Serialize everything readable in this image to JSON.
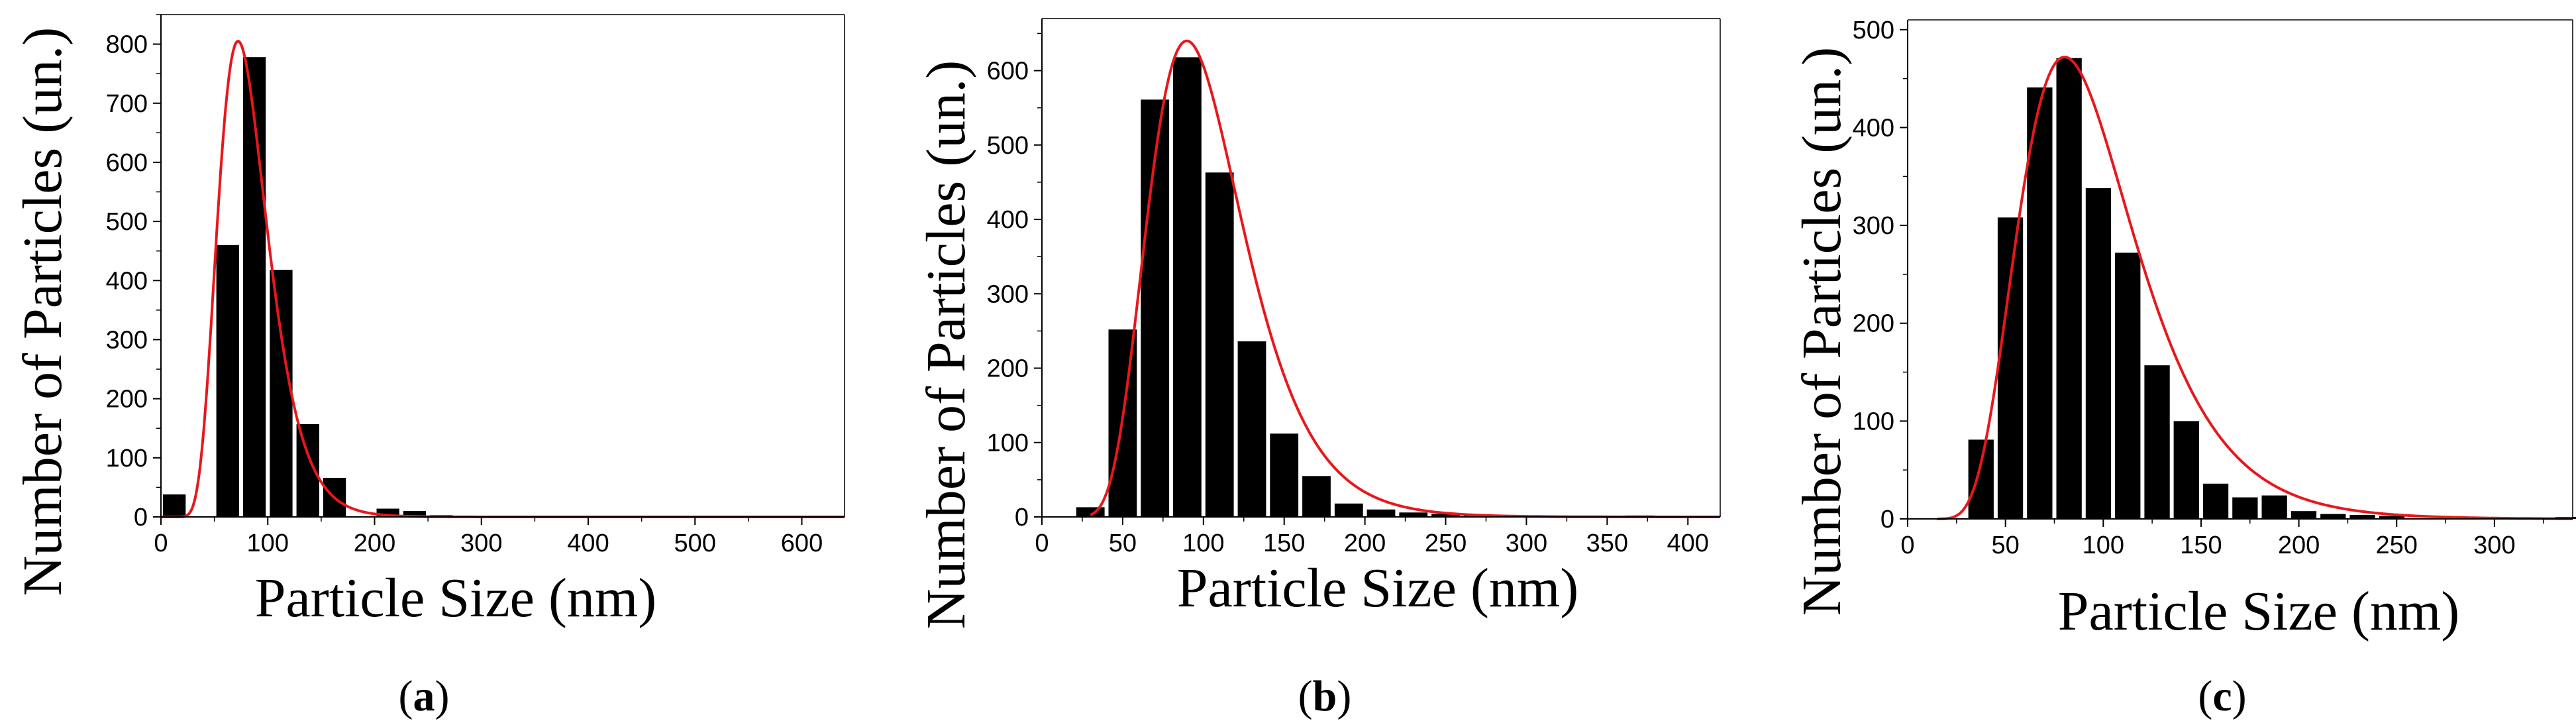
{
  "chart_data": [
    {
      "type": "bar",
      "caption": "a",
      "xlabel": "Particle Size (nm)",
      "ylabel": "Number of Particles (un.)",
      "xlim": [
        0,
        640
      ],
      "ylim": [
        0,
        850
      ],
      "xticks": [
        0,
        100,
        200,
        300,
        400,
        500,
        600
      ],
      "yticks": [
        0,
        100,
        200,
        300,
        400,
        500,
        600,
        700,
        800
      ],
      "bin_width": 25,
      "bins": [
        {
          "x": 12.5,
          "value": 38
        },
        {
          "x": 37.5,
          "value": 0
        },
        {
          "x": 62.5,
          "value": 460
        },
        {
          "x": 87.5,
          "value": 778
        },
        {
          "x": 112.5,
          "value": 418
        },
        {
          "x": 137.5,
          "value": 157
        },
        {
          "x": 162.5,
          "value": 66
        },
        {
          "x": 187.5,
          "value": 0
        },
        {
          "x": 212.5,
          "value": 14
        },
        {
          "x": 237.5,
          "value": 10
        },
        {
          "x": 262.5,
          "value": 3
        },
        {
          "x": 287.5,
          "value": 2
        }
      ],
      "fit": {
        "type": "lognormal",
        "median": 80,
        "sigma": 0.32,
        "peak": 805,
        "xmin": 0,
        "xmax": 640,
        "color": "#e8171c"
      }
    },
    {
      "type": "bar",
      "caption": "b",
      "xlabel": "Particle Size (nm)",
      "ylabel": "Number of Particles (un.)",
      "xlim": [
        0,
        420
      ],
      "ylim": [
        0,
        670
      ],
      "xticks": [
        0,
        50,
        100,
        150,
        200,
        250,
        300,
        350,
        400
      ],
      "yticks": [
        0,
        100,
        200,
        300,
        400,
        500,
        600
      ],
      "bin_width": 20,
      "bins": [
        {
          "x": 30,
          "value": 13
        },
        {
          "x": 50,
          "value": 252
        },
        {
          "x": 70,
          "value": 561
        },
        {
          "x": 90,
          "value": 618
        },
        {
          "x": 110,
          "value": 463
        },
        {
          "x": 130,
          "value": 236
        },
        {
          "x": 150,
          "value": 112
        },
        {
          "x": 170,
          "value": 55
        },
        {
          "x": 190,
          "value": 18
        },
        {
          "x": 210,
          "value": 10
        },
        {
          "x": 230,
          "value": 6
        },
        {
          "x": 250,
          "value": 4
        },
        {
          "x": 270,
          "value": 2
        },
        {
          "x": 370,
          "value": 2
        }
      ],
      "fit": {
        "type": "lognormal",
        "median": 100,
        "sigma": 0.33,
        "peak": 640,
        "xmin": 30,
        "xmax": 420,
        "color": "#e8171c"
      }
    },
    {
      "type": "bar",
      "caption": "c",
      "xlabel": "Particle Size (nm)",
      "ylabel": "Number of Particles (un.)",
      "xlim": [
        0,
        340
      ],
      "ylim": [
        0,
        510
      ],
      "xticks": [
        0,
        50,
        100,
        150,
        200,
        250,
        300
      ],
      "yticks": [
        0,
        100,
        200,
        300,
        400,
        500
      ],
      "bin_width": 15,
      "bins": [
        {
          "x": 37.5,
          "value": 81
        },
        {
          "x": 52.5,
          "value": 308
        },
        {
          "x": 67.5,
          "value": 441
        },
        {
          "x": 82.5,
          "value": 471
        },
        {
          "x": 97.5,
          "value": 338
        },
        {
          "x": 112.5,
          "value": 272
        },
        {
          "x": 127.5,
          "value": 157
        },
        {
          "x": 142.5,
          "value": 100
        },
        {
          "x": 157.5,
          "value": 36
        },
        {
          "x": 172.5,
          "value": 22
        },
        {
          "x": 187.5,
          "value": 24
        },
        {
          "x": 202.5,
          "value": 8
        },
        {
          "x": 217.5,
          "value": 5
        },
        {
          "x": 232.5,
          "value": 4
        },
        {
          "x": 247.5,
          "value": 3
        },
        {
          "x": 337.5,
          "value": 2
        }
      ],
      "fit": {
        "type": "lognormal",
        "median": 92,
        "sigma": 0.37,
        "peak": 472,
        "xmin": 15,
        "xmax": 340,
        "color": "#e8171c"
      }
    }
  ]
}
